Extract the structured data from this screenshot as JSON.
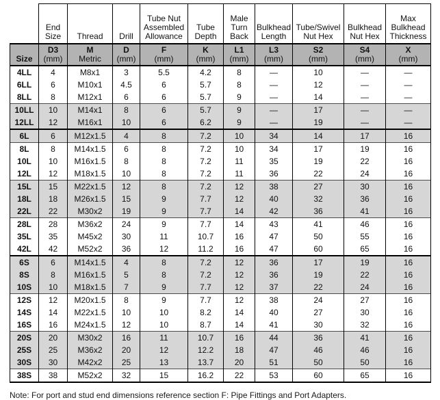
{
  "table": {
    "columns": [
      {
        "top": "",
        "code": "Size",
        "unit": ""
      },
      {
        "top": "End Size",
        "code": "D3",
        "unit": "(mm)"
      },
      {
        "top": "Thread",
        "code": "M",
        "unit": "Metric"
      },
      {
        "top": "Drill",
        "code": "D",
        "unit": "(mm)"
      },
      {
        "top": "Tube Nut Assembled Allowance",
        "code": "F",
        "unit": "(mm)"
      },
      {
        "top": "Tube Depth",
        "code": "K",
        "unit": "(mm)"
      },
      {
        "top": "Male Turn Back",
        "code": "L1",
        "unit": "(mm)"
      },
      {
        "top": "Bulkhead Length",
        "code": "L3",
        "unit": "(mm)"
      },
      {
        "top": "Tube/Swivel Nut Hex",
        "code": "S2",
        "unit": "(mm)"
      },
      {
        "top": "Bulkhead Nut Hex",
        "code": "S4",
        "unit": "(mm)"
      },
      {
        "top": "Max Bulkhead Thickness",
        "code": "X",
        "unit": "(mm)"
      }
    ],
    "rows": [
      {
        "size": "4LL",
        "shaded": false,
        "section_start": false,
        "values": [
          "4",
          "M8x1",
          "3",
          "5.5",
          "4.2",
          "8",
          "—",
          "10",
          "—",
          "—"
        ]
      },
      {
        "size": "6LL",
        "shaded": false,
        "section_start": false,
        "values": [
          "6",
          "M10x1",
          "4.5",
          "6",
          "5.7",
          "8",
          "—",
          "12",
          "—",
          "—"
        ]
      },
      {
        "size": "8LL",
        "shaded": false,
        "section_start": false,
        "values": [
          "8",
          "M12x1",
          "6",
          "6",
          "5.7",
          "9",
          "—",
          "14",
          "—",
          "—"
        ]
      },
      {
        "size": "10LL",
        "shaded": true,
        "section_start": false,
        "values": [
          "10",
          "M14x1",
          "8",
          "6",
          "5.7",
          "9",
          "—",
          "17",
          "—",
          "—"
        ]
      },
      {
        "size": "12LL",
        "shaded": true,
        "section_start": false,
        "values": [
          "12",
          "M16x1",
          "10",
          "6",
          "6.2",
          "9",
          "—",
          "19",
          "—",
          "—"
        ]
      },
      {
        "size": "6L",
        "shaded": true,
        "section_start": true,
        "values": [
          "6",
          "M12x1.5",
          "4",
          "8",
          "7.2",
          "10",
          "34",
          "14",
          "17",
          "16"
        ]
      },
      {
        "size": "8L",
        "shaded": false,
        "section_start": false,
        "values": [
          "8",
          "M14x1.5",
          "6",
          "8",
          "7.2",
          "10",
          "34",
          "17",
          "19",
          "16"
        ]
      },
      {
        "size": "10L",
        "shaded": false,
        "section_start": false,
        "values": [
          "10",
          "M16x1.5",
          "8",
          "8",
          "7.2",
          "11",
          "35",
          "19",
          "22",
          "16"
        ]
      },
      {
        "size": "12L",
        "shaded": false,
        "section_start": false,
        "values": [
          "12",
          "M18x1.5",
          "10",
          "8",
          "7.2",
          "11",
          "36",
          "22",
          "24",
          "16"
        ]
      },
      {
        "size": "15L",
        "shaded": true,
        "section_start": false,
        "values": [
          "15",
          "M22x1.5",
          "12",
          "8",
          "7.2",
          "12",
          "38",
          "27",
          "30",
          "16"
        ]
      },
      {
        "size": "18L",
        "shaded": true,
        "section_start": false,
        "values": [
          "18",
          "M26x1.5",
          "15",
          "9",
          "7.7",
          "12",
          "40",
          "32",
          "36",
          "16"
        ]
      },
      {
        "size": "22L",
        "shaded": true,
        "section_start": false,
        "values": [
          "22",
          "M30x2",
          "19",
          "9",
          "7.7",
          "14",
          "42",
          "36",
          "41",
          "16"
        ]
      },
      {
        "size": "28L",
        "shaded": false,
        "section_start": false,
        "values": [
          "28",
          "M36x2",
          "24",
          "9",
          "7.7",
          "14",
          "43",
          "41",
          "46",
          "16"
        ]
      },
      {
        "size": "35L",
        "shaded": false,
        "section_start": false,
        "values": [
          "35",
          "M45x2",
          "30",
          "11",
          "10.7",
          "16",
          "47",
          "50",
          "55",
          "16"
        ]
      },
      {
        "size": "42L",
        "shaded": false,
        "section_start": false,
        "values": [
          "42",
          "M52x2",
          "36",
          "12",
          "11.2",
          "16",
          "47",
          "60",
          "65",
          "16"
        ]
      },
      {
        "size": "6S",
        "shaded": true,
        "section_start": true,
        "values": [
          "6",
          "M14x1.5",
          "4",
          "8",
          "7.2",
          "12",
          "36",
          "17",
          "19",
          "16"
        ]
      },
      {
        "size": "8S",
        "shaded": true,
        "section_start": false,
        "values": [
          "8",
          "M16x1.5",
          "5",
          "8",
          "7.2",
          "12",
          "36",
          "19",
          "22",
          "16"
        ]
      },
      {
        "size": "10S",
        "shaded": true,
        "section_start": false,
        "values": [
          "10",
          "M18x1.5",
          "7",
          "9",
          "7.7",
          "12",
          "37",
          "22",
          "24",
          "16"
        ]
      },
      {
        "size": "12S",
        "shaded": false,
        "section_start": false,
        "values": [
          "12",
          "M20x1.5",
          "8",
          "9",
          "7.7",
          "12",
          "38",
          "24",
          "27",
          "16"
        ]
      },
      {
        "size": "14S",
        "shaded": false,
        "section_start": false,
        "values": [
          "14",
          "M22x1.5",
          "10",
          "10",
          "8.2",
          "14",
          "40",
          "27",
          "30",
          "16"
        ]
      },
      {
        "size": "16S",
        "shaded": false,
        "section_start": false,
        "values": [
          "16",
          "M24x1.5",
          "12",
          "10",
          "8.7",
          "14",
          "41",
          "30",
          "32",
          "16"
        ]
      },
      {
        "size": "20S",
        "shaded": true,
        "section_start": false,
        "values": [
          "20",
          "M30x2",
          "16",
          "11",
          "10.7",
          "16",
          "44",
          "36",
          "41",
          "16"
        ]
      },
      {
        "size": "25S",
        "shaded": true,
        "section_start": false,
        "values": [
          "25",
          "M36x2",
          "20",
          "12",
          "12.2",
          "18",
          "47",
          "46",
          "46",
          "16"
        ]
      },
      {
        "size": "30S",
        "shaded": true,
        "section_start": false,
        "values": [
          "30",
          "M42x2",
          "25",
          "13",
          "13.7",
          "20",
          "51",
          "50",
          "50",
          "16"
        ]
      },
      {
        "size": "38S",
        "shaded": false,
        "section_start": false,
        "values": [
          "38",
          "M52x2",
          "32",
          "15",
          "16.2",
          "22",
          "53",
          "60",
          "65",
          "16"
        ]
      }
    ]
  },
  "note": "Note: For port and stud end dimensions reference section F: Pipe Fittings and Port Adapters.",
  "colors": {
    "subheader_bg": "#b3b3b3",
    "shaded_row_bg": "#d6d6d6",
    "border": "#000000"
  }
}
